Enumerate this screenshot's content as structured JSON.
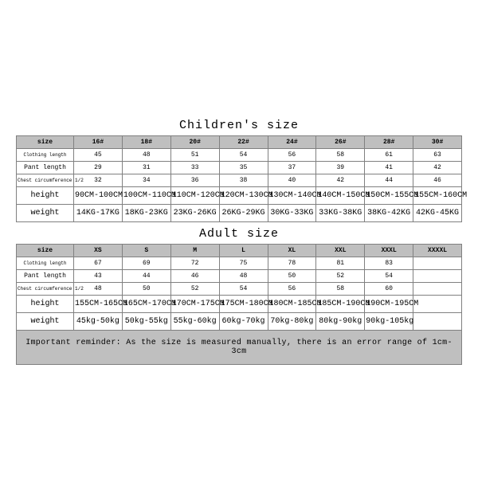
{
  "children": {
    "title": "Children's size",
    "columns_label": "size",
    "sizes": [
      "16#",
      "18#",
      "20#",
      "22#",
      "24#",
      "26#",
      "28#",
      "30#"
    ],
    "rows": [
      {
        "label": "Clothing length",
        "small": true,
        "values": [
          "45",
          "48",
          "51",
          "54",
          "56",
          "58",
          "61",
          "63"
        ]
      },
      {
        "label": "Pant length",
        "small": false,
        "values": [
          "29",
          "31",
          "33",
          "35",
          "37",
          "39",
          "41",
          "42"
        ]
      },
      {
        "label": "Chest circumference 1/2",
        "small": true,
        "values": [
          "32",
          "34",
          "36",
          "38",
          "40",
          "42",
          "44",
          "46"
        ]
      },
      {
        "label": "height",
        "tall": true,
        "values": [
          "90CM-100CM",
          "100CM-110CM",
          "110CM-120CM",
          "120CM-130CM",
          "130CM-140CM",
          "140CM-150CM",
          "150CM-155CM",
          "155CM-160CM"
        ]
      },
      {
        "label": "weight",
        "tall": true,
        "values": [
          "14KG-17KG",
          "18KG-23KG",
          "23KG-26KG",
          "26KG-29KG",
          "30KG-33KG",
          "33KG-38KG",
          "38KG-42KG",
          "42KG-45KG"
        ]
      }
    ]
  },
  "adult": {
    "title": "Adult size",
    "columns_label": "size",
    "sizes": [
      "XS",
      "S",
      "M",
      "L",
      "XL",
      "XXL",
      "XXXL",
      "XXXXL"
    ],
    "rows": [
      {
        "label": "Clothing length",
        "small": true,
        "values": [
          "67",
          "69",
          "72",
          "75",
          "78",
          "81",
          "83",
          ""
        ]
      },
      {
        "label": "Pant length",
        "small": false,
        "values": [
          "43",
          "44",
          "46",
          "48",
          "50",
          "52",
          "54",
          ""
        ]
      },
      {
        "label": "Chest circumference 1/2",
        "small": true,
        "values": [
          "48",
          "50",
          "52",
          "54",
          "56",
          "58",
          "60",
          ""
        ]
      },
      {
        "label": "height",
        "tall": true,
        "values": [
          "155CM-165CM",
          "165CM-170CM",
          "170CM-175CM",
          "175CM-180CM",
          "180CM-185CM",
          "185CM-190CM",
          "190CM-195CM",
          ""
        ]
      },
      {
        "label": "weight",
        "tall": true,
        "values": [
          "45kg-50kg",
          "50kg-55kg",
          "55kg-60kg",
          "60kg-70kg",
          "70kg-80kg",
          "80kg-90kg",
          "90kg-105kg",
          ""
        ]
      }
    ]
  },
  "reminder": "Important reminder: As the size is measured manually, there is an error range of 1cm-3cm",
  "colors": {
    "header_bg": "#bfbfbf",
    "border": "#808080",
    "bg": "#ffffff",
    "text": "#000000"
  }
}
